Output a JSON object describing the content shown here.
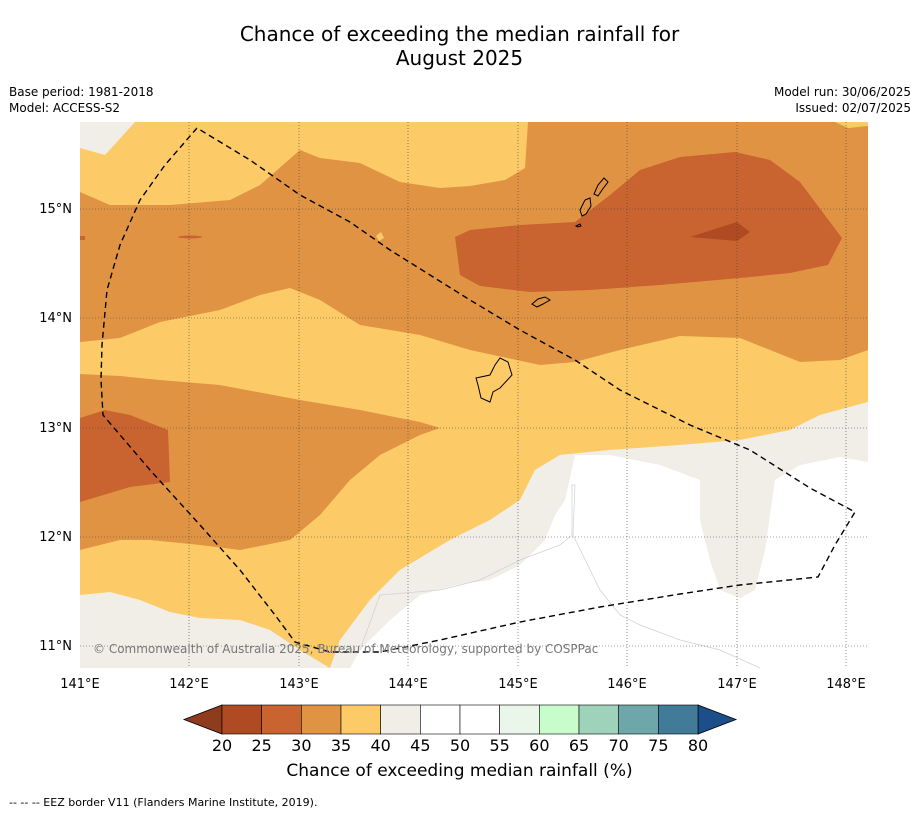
{
  "title_line1": "Chance of exceeding the median rainfall for",
  "title_line2": "August 2025",
  "meta_left": [
    "Base period: 1981-2018",
    "Model: ACCESS-S2"
  ],
  "meta_right": [
    "Model run: 30/06/2025",
    "Issued: 02/07/2025"
  ],
  "copyright": "© Commonwealth of Australia 2025, Bureau of Meteorology, supported by COSPPac",
  "lat_labels": [
    "15°N",
    "14°N",
    "13°N",
    "12°N",
    "11°N"
  ],
  "lon_labels": [
    "141°E",
    "142°E",
    "143°E",
    "144°E",
    "145°E",
    "146°E",
    "147°E",
    "148°E"
  ],
  "colorbar": {
    "title": "Chance of exceeding median rainfall (%)",
    "ticks": [
      "20",
      "25",
      "30",
      "35",
      "40",
      "45",
      "50",
      "55",
      "60",
      "65",
      "70",
      "75",
      "80"
    ],
    "colors": [
      "#b04a22",
      "#c9632f",
      "#e09443",
      "#fdca68",
      "#f1ede7",
      "#ffffff",
      "#ffffff",
      "#e9f6e9",
      "#c8fdcb",
      "#9fd2bb",
      "#6ea7a9",
      "#427b98"
    ],
    "under_color": "#8f3b1e",
    "over_color": "#1c4f8a"
  },
  "legend_footnote": "-- -- -- EEZ border V11 (Flanders Marine Institute, 2019).",
  "colors": {
    "c20": "#8f3b1e",
    "c25": "#b04a22",
    "c30": "#c9632f",
    "c35": "#e09443",
    "c40": "#fdca68",
    "c45": "#f1ede7",
    "c50": "#ffffff"
  }
}
